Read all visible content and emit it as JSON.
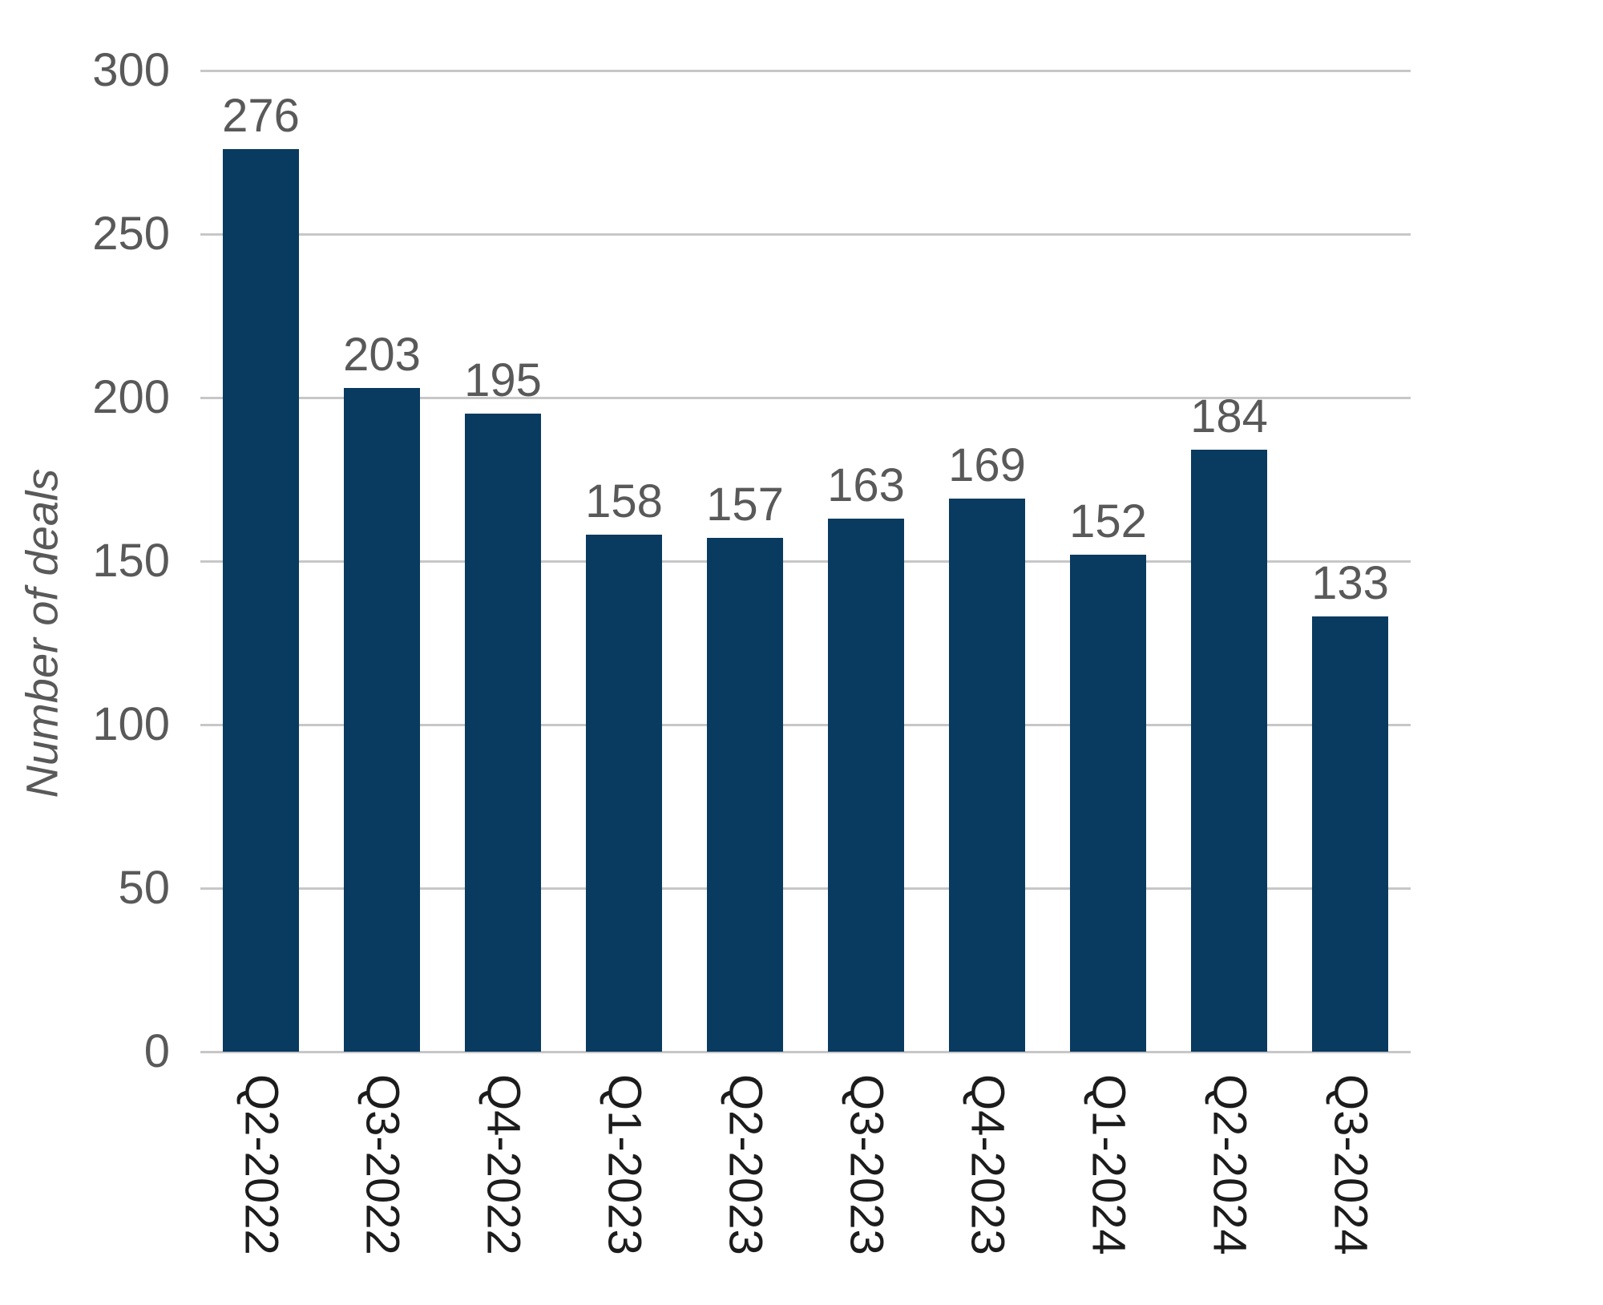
{
  "chart_data": {
    "type": "bar",
    "categories": [
      "Q2-2022",
      "Q3-2022",
      "Q4-2022",
      "Q1-2023",
      "Q2-2023",
      "Q3-2023",
      "Q4-2023",
      "Q1-2024",
      "Q2-2024",
      "Q3-2024"
    ],
    "values": [
      276,
      203,
      195,
      158,
      157,
      163,
      169,
      152,
      184,
      133
    ],
    "title": "",
    "xlabel": "",
    "ylabel": "Number of deals",
    "ylim": [
      0,
      300
    ],
    "yticks": [
      0,
      50,
      100,
      150,
      200,
      250,
      300
    ],
    "grid": "horizontal",
    "legend": "none",
    "bar_color": "#093a5f",
    "gridline_color": "#c7c7c7",
    "value_label_color": "#595959",
    "y_tick_color": "#595959",
    "x_tick_color": "#1c1c1c",
    "background_color": "#ffffff"
  }
}
